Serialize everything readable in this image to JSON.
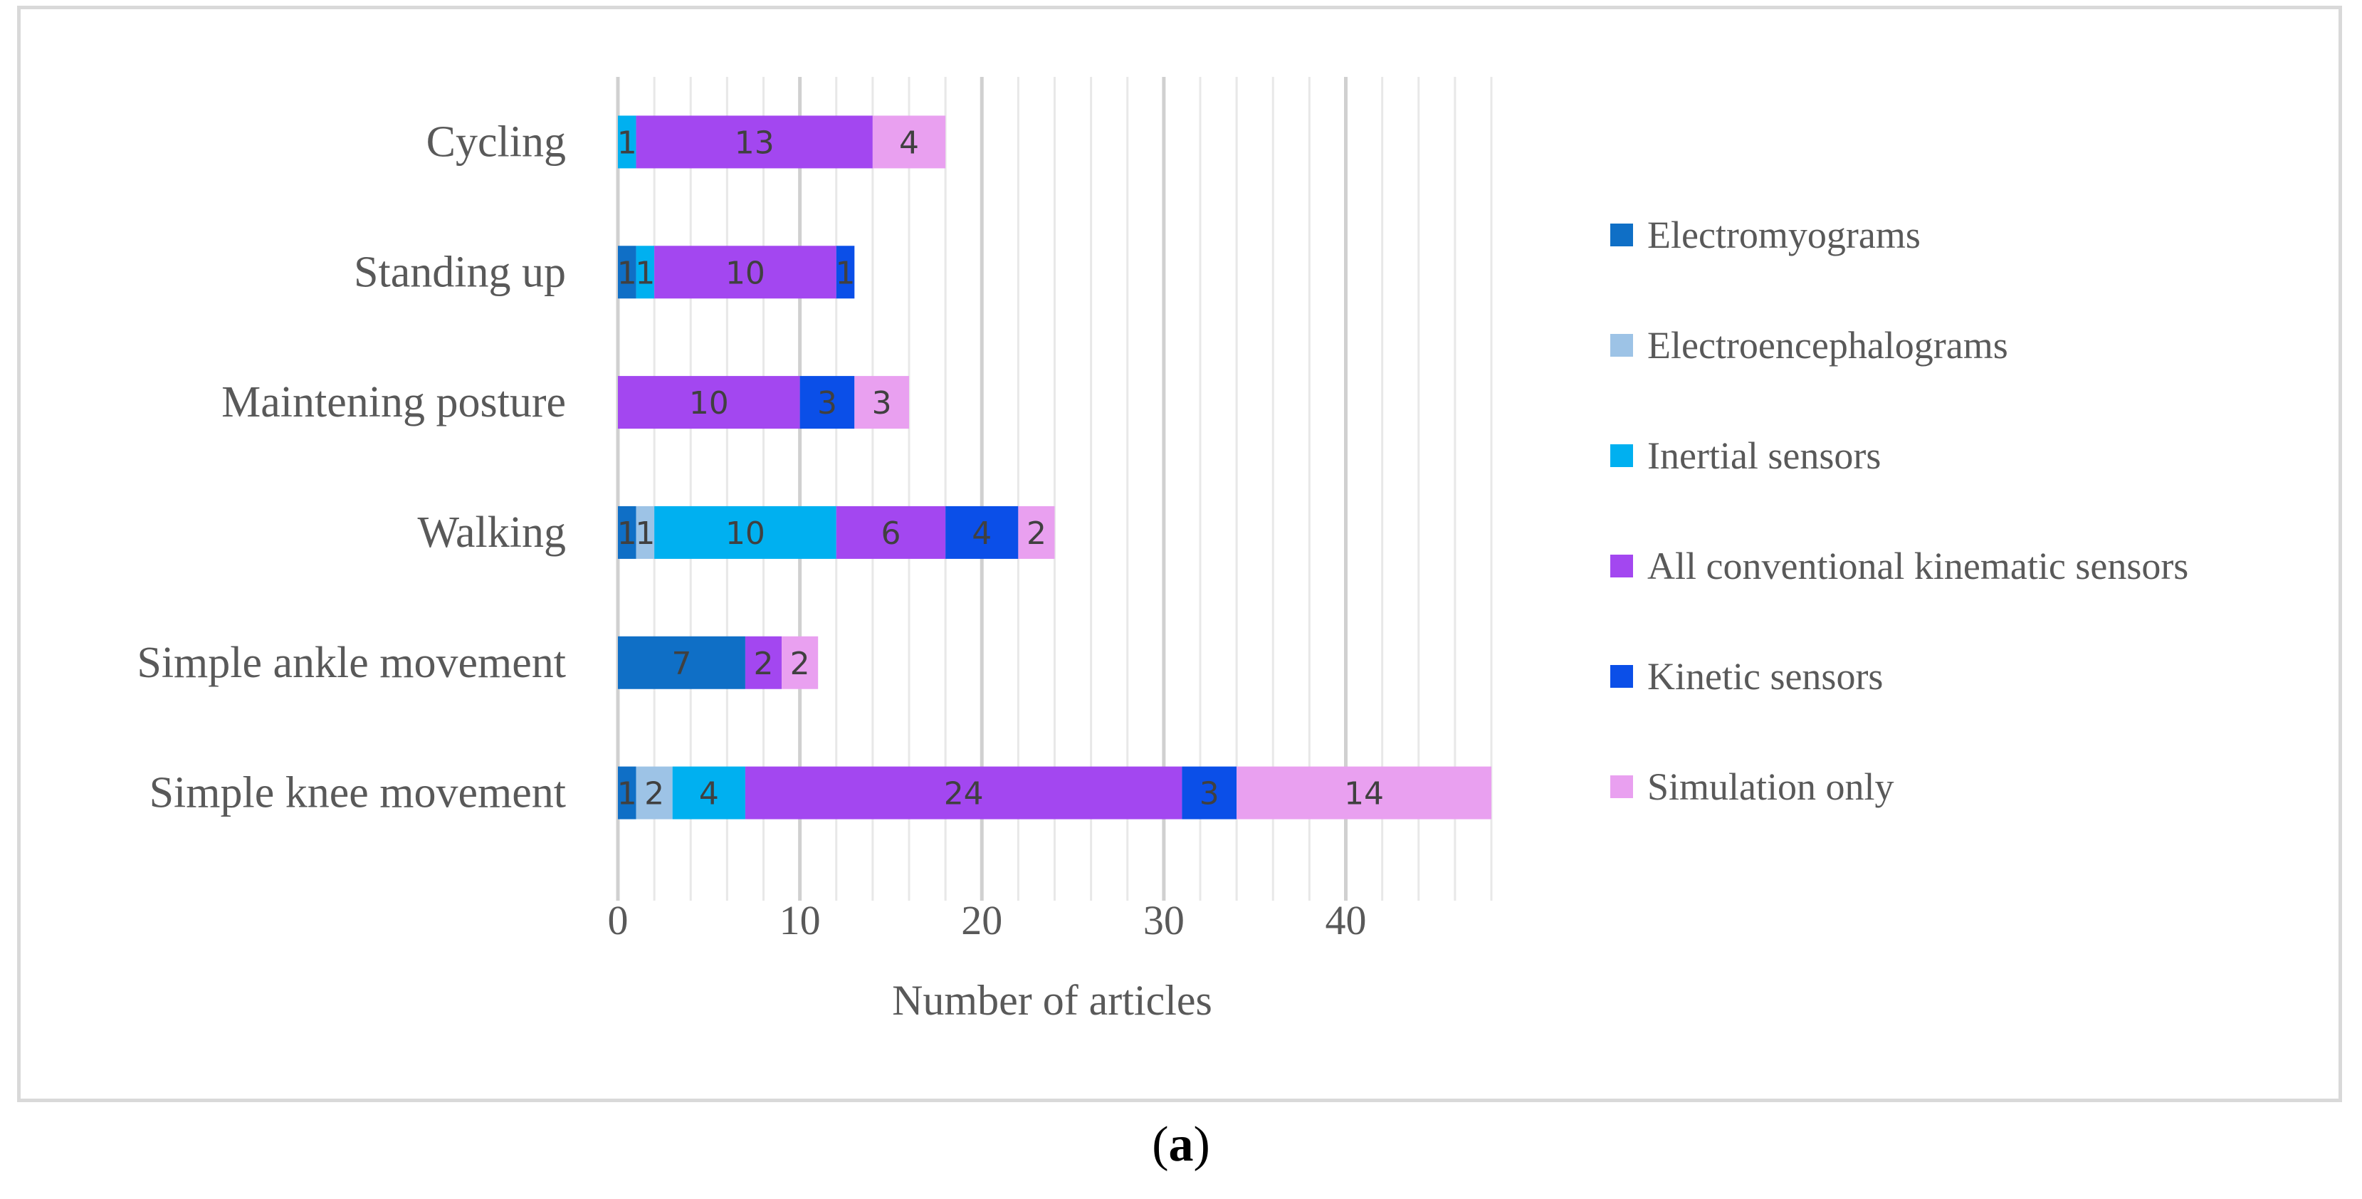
{
  "chart_data": {
    "type": "bar",
    "orientation": "horizontal",
    "stacked": true,
    "categories": [
      "Simple knee movement",
      "Simple ankle movement",
      "Walking",
      "Maintening posture",
      "Standing up",
      "Cycling"
    ],
    "series": [
      {
        "name": "Electromyograms",
        "color": "#0f6fc6",
        "values": [
          1,
          7,
          1,
          0,
          1,
          0
        ]
      },
      {
        "name": "Electroencephalograms",
        "color": "#9dc3e6",
        "values": [
          2,
          0,
          1,
          0,
          0,
          0
        ]
      },
      {
        "name": "Inertial sensors",
        "color": "#00b0f0",
        "values": [
          4,
          0,
          10,
          0,
          1,
          1
        ]
      },
      {
        "name": "All conventional kinematic sensors",
        "color": "#a347f0",
        "values": [
          24,
          2,
          6,
          10,
          10,
          13
        ]
      },
      {
        "name": "Kinetic sensors",
        "color": "#0b4fe8",
        "values": [
          3,
          0,
          4,
          3,
          1,
          0
        ]
      },
      {
        "name": "Simulation only",
        "color": "#e9a0f0",
        "values": [
          14,
          2,
          2,
          3,
          0,
          4
        ]
      }
    ],
    "xlabel": "Number of articles",
    "ylabel": "",
    "xlim": [
      0,
      48
    ],
    "x_ticks": [
      0,
      10,
      20,
      30,
      40
    ],
    "grid": true,
    "legend_position": "right",
    "caption": "(a)"
  }
}
